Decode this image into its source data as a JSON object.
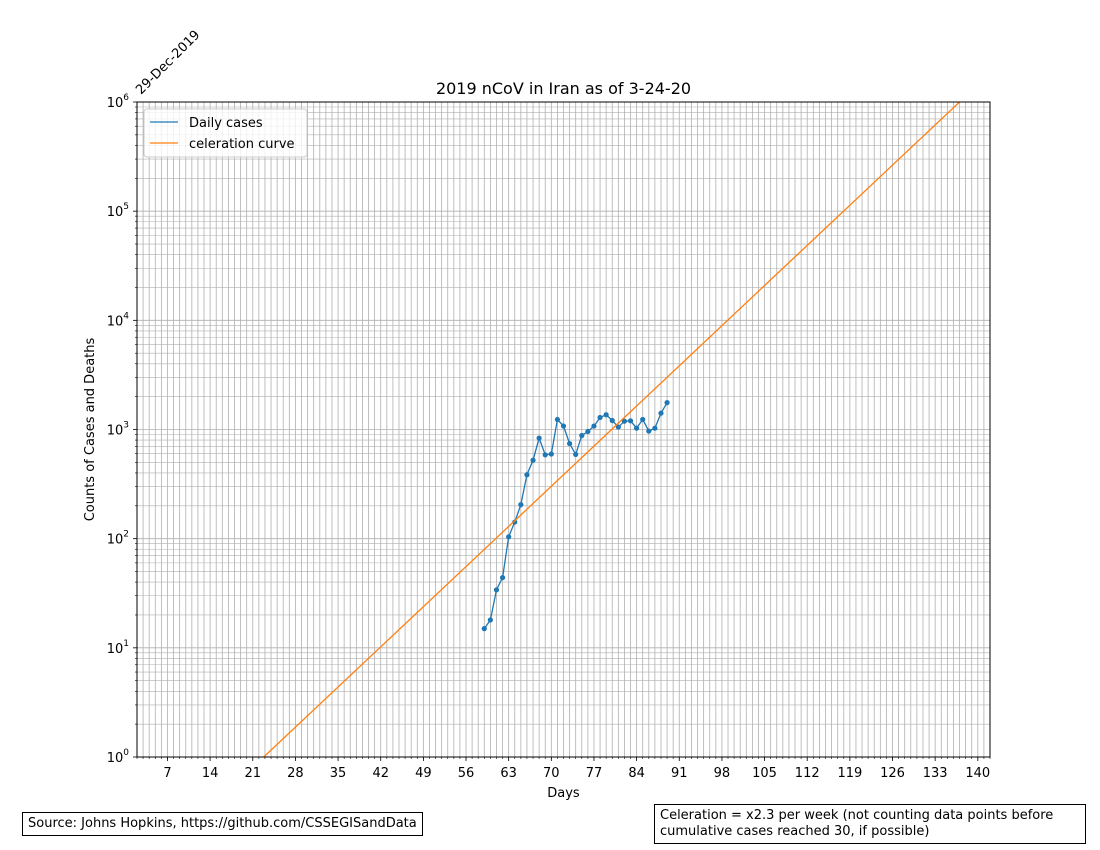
{
  "chart_data": {
    "type": "line",
    "title": "2019 nCoV in Iran as of 3-24-20",
    "xlabel": "Days",
    "ylabel": "Counts of Cases and Deaths",
    "start_date_label": "29-Dec-2019",
    "xlim": [
      2,
      142
    ],
    "ylim": [
      1,
      1000000
    ],
    "yscale": "log",
    "x_ticks": [
      7,
      14,
      21,
      28,
      35,
      42,
      49,
      56,
      63,
      70,
      77,
      84,
      91,
      98,
      105,
      112,
      119,
      126,
      133,
      140
    ],
    "y_ticks": [
      {
        "base": "10",
        "exp": "0"
      },
      {
        "base": "10",
        "exp": "1"
      },
      {
        "base": "10",
        "exp": "2"
      },
      {
        "base": "10",
        "exp": "3"
      },
      {
        "base": "10",
        "exp": "4"
      },
      {
        "base": "10",
        "exp": "5"
      },
      {
        "base": "10",
        "exp": "6"
      }
    ],
    "grid": true,
    "legend_position": "top-left",
    "series": [
      {
        "name": "Daily cases",
        "color": "#1f77b4",
        "marker": "dot",
        "x": [
          59,
          60,
          61,
          62,
          63,
          64,
          65,
          66,
          67,
          68,
          69,
          70,
          71,
          72,
          73,
          74,
          75,
          76,
          77,
          78,
          79,
          80,
          81,
          82,
          83,
          84,
          85,
          86,
          87,
          88,
          89
        ],
        "y": [
          15,
          18,
          34,
          44,
          104,
          142,
          205,
          385,
          523,
          835,
          586,
          596,
          1234,
          1076,
          743,
          591,
          881,
          958,
          1075,
          1289,
          1365,
          1209,
          1053,
          1191,
          1201,
          1028,
          1237,
          967,
          1028,
          1411,
          1762
        ]
      },
      {
        "name": "celeration curve",
        "color": "#ff7f0e",
        "marker": "none",
        "x": [
          22.8,
          137.0
        ],
        "y": [
          1,
          1000000
        ]
      }
    ]
  },
  "source_text": "Source: Johns Hopkins, https://github.com/CSSEGISandData",
  "celeration_text": "Celeration = x2.3 per week (not counting data points before\ncumulative cases reached 30, if possible)"
}
